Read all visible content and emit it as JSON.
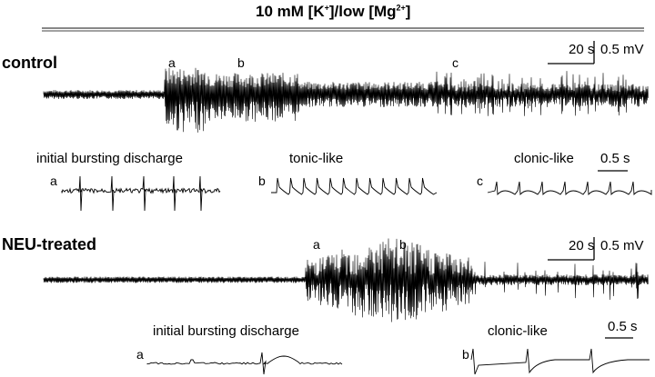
{
  "title": {
    "conc": "10 mM",
    "k_open": "[K",
    "k_sup": "+",
    "mid": "]/low [Mg",
    "mg_sup": "2+",
    "close": "]"
  },
  "control": {
    "label": "control",
    "markers": [
      "a",
      "b",
      "c"
    ],
    "scalebar": {
      "time": "20 s",
      "amp": "0.5 mV"
    },
    "insets": [
      {
        "caption": "initial bursting discharge",
        "letter": "a"
      },
      {
        "caption": "tonic-like",
        "letter": "b"
      },
      {
        "caption": "clonic-like",
        "letter": "c"
      }
    ],
    "inset_scale": "0.5 s"
  },
  "neu": {
    "label": "NEU-treated",
    "markers": [
      "a",
      "b"
    ],
    "scalebar": {
      "time": "20 s",
      "amp": "0.5 mV"
    },
    "insets": [
      {
        "caption": "initial bursting discharge",
        "letter": "a"
      },
      {
        "caption": "clonic-like",
        "letter": "b"
      }
    ],
    "inset_scale": "0.5 s"
  }
}
